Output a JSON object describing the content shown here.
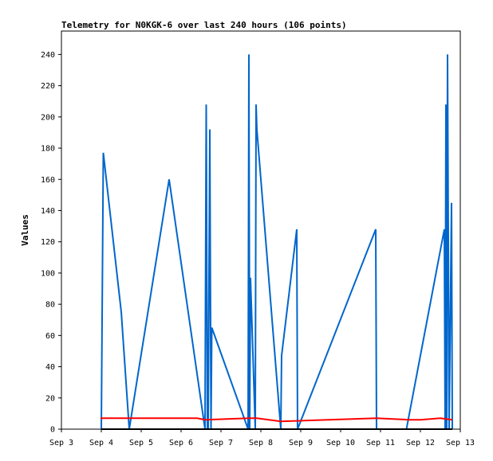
{
  "chart_data": {
    "type": "line",
    "title": "Telemetry for N0KGK-6 over last 240 hours (106 points)",
    "xlabel": "",
    "ylabel": "Values",
    "xlim": [
      "Sep 3",
      "Sep 13"
    ],
    "ylim": [
      0,
      255
    ],
    "x_ticks": [
      "Sep 3",
      "Sep 4",
      "Sep 5",
      "Sep 6",
      "Sep 7",
      "Sep 8",
      "Sep 9",
      "Sep 10",
      "Sep 11",
      "Sep 12",
      "Sep 13"
    ],
    "y_ticks": [
      0,
      20,
      40,
      60,
      80,
      100,
      120,
      140,
      160,
      180,
      200,
      220,
      240
    ],
    "grid": false,
    "legend": "none",
    "series": [
      {
        "color": "#0066cc",
        "x_day": [
          4.0,
          4.05,
          4.5,
          4.7,
          5.7,
          6.6,
          6.63,
          6.66,
          6.68,
          6.72,
          6.75,
          6.77,
          7.68,
          7.7,
          7.72,
          7.74,
          7.86,
          7.88,
          7.9,
          8.5,
          8.52,
          8.9,
          8.92,
          10.88,
          10.9,
          11.65,
          12.6,
          12.62,
          12.64,
          12.66,
          12.68,
          12.7,
          12.72,
          12.78,
          12.8
        ],
        "values": [
          0,
          177,
          75,
          0,
          160,
          0,
          208,
          0,
          0,
          192,
          0,
          65,
          0,
          240,
          0,
          97,
          0,
          208,
          192,
          0,
          47,
          128,
          0,
          128,
          0,
          0,
          128,
          0,
          208,
          0,
          240,
          120,
          0,
          145,
          0
        ]
      },
      {
        "color": "#ff0000",
        "x_day": [
          3.98,
          4.6,
          4.8,
          6.4,
          6.6,
          7.7,
          7.9,
          8.5,
          10.9,
          11.7,
          12.0,
          12.5,
          12.8
        ],
        "values": [
          7,
          7,
          7,
          7,
          6,
          7,
          7,
          5,
          7,
          6,
          6,
          7,
          6
        ]
      },
      {
        "color": "#000000",
        "x_day": [
          4.0,
          12.8
        ],
        "values": [
          0,
          0
        ]
      }
    ]
  }
}
